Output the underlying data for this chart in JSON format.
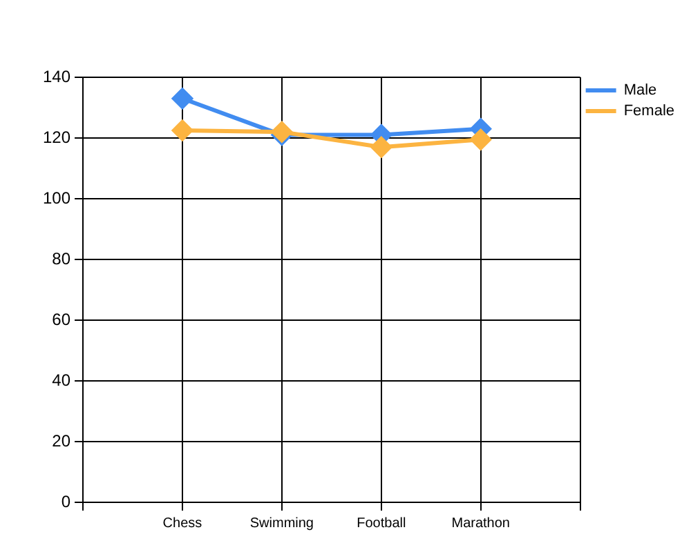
{
  "chart_data": {
    "type": "line",
    "categories": [
      "Chess",
      "Swimming",
      "Football",
      "Marathon"
    ],
    "series": [
      {
        "name": "Male",
        "color": "#418cf0",
        "values": [
          133,
          121,
          121,
          123
        ]
      },
      {
        "name": "Female",
        "color": "#fcb441",
        "values": [
          122.5,
          122,
          117,
          119.5
        ]
      }
    ],
    "ylim": [
      0,
      140
    ],
    "yticks": [
      0,
      20,
      40,
      60,
      80,
      100,
      120,
      140
    ],
    "grid": true,
    "legend": "top right",
    "marker": "diamond",
    "line_style": "solid"
  }
}
